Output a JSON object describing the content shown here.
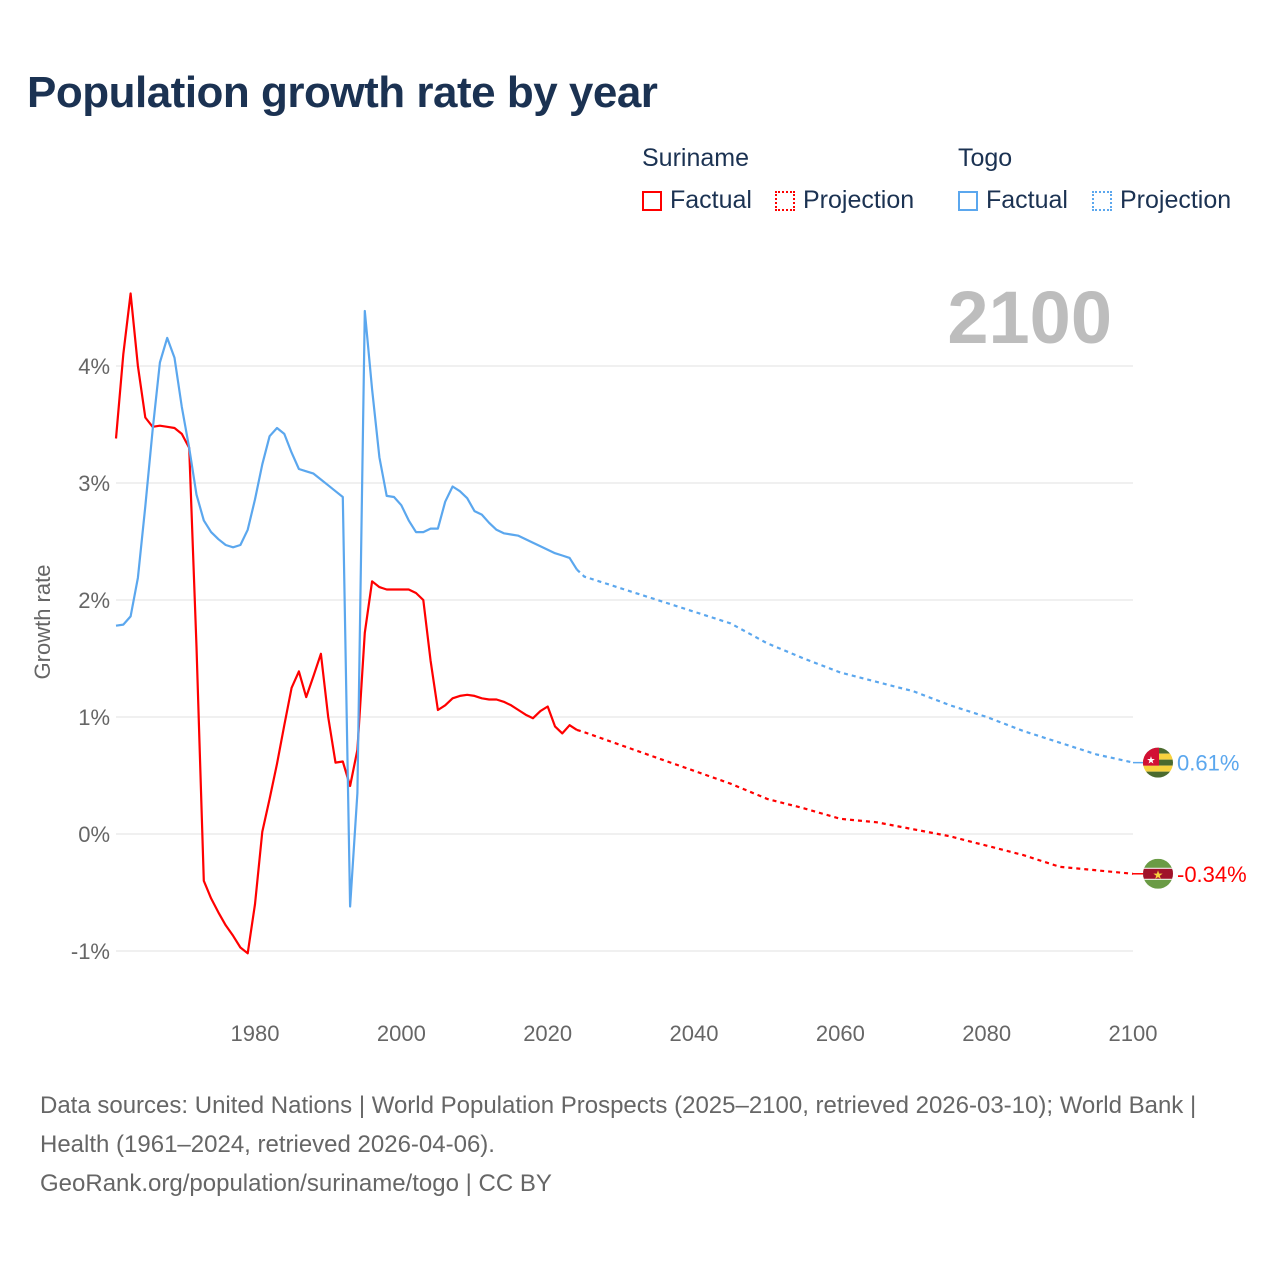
{
  "title": "Population growth rate by year",
  "legend": {
    "groups": [
      {
        "country": "Suriname",
        "color": "#ff0000",
        "factual": "Factual",
        "projection": "Projection"
      },
      {
        "country": "Togo",
        "color": "#5ba7ee",
        "factual": "Factual",
        "projection": "Projection"
      }
    ]
  },
  "footer": {
    "sources": "Data sources: United Nations | World Population Prospects (2025–2100, retrieved 2026-03-10); World Bank | Health (1961–2024, retrieved 2026-04-06).",
    "credit": "GeoRank.org/population/suriname/togo | CC BY"
  },
  "chart_data": {
    "type": "line",
    "title": "Population growth rate by year",
    "ylabel": "Growth rate",
    "xlabel": "",
    "year_label": "2100",
    "xlim": [
      1961,
      2100
    ],
    "ylim": [
      -1.5,
      4.8
    ],
    "x_ticks": [
      1980,
      2000,
      2020,
      2040,
      2060,
      2080,
      2100
    ],
    "x_tick_labels": [
      "1980",
      "2000",
      "2020",
      "2040",
      "2060",
      "2080",
      "2100"
    ],
    "y_ticks": [
      -1,
      0,
      1,
      2,
      3,
      4
    ],
    "y_tick_labels": [
      "-1%",
      "0%",
      "1%",
      "2%",
      "3%",
      "4%"
    ],
    "grid": true,
    "series": [
      {
        "name": "Suriname",
        "color": "#ff0000",
        "end_label": "-0.34%",
        "factual": {
          "x": [
            1961,
            1962,
            1963,
            1964,
            1965,
            1966,
            1967,
            1968,
            1969,
            1970,
            1971,
            1972,
            1973,
            1974,
            1975,
            1976,
            1977,
            1978,
            1979,
            1980,
            1981,
            1982,
            1983,
            1984,
            1985,
            1986,
            1987,
            1988,
            1989,
            1990,
            1991,
            1992,
            1993,
            1994,
            1995,
            1996,
            1997,
            1998,
            1999,
            2000,
            2001,
            2002,
            2003,
            2004,
            2005,
            2006,
            2007,
            2008,
            2009,
            2010,
            2011,
            2012,
            2013,
            2014,
            2015,
            2016,
            2017,
            2018,
            2019,
            2020,
            2021,
            2022,
            2023,
            2024
          ],
          "y": [
            3.38,
            4.1,
            4.62,
            4.0,
            3.56,
            3.48,
            3.49,
            3.48,
            3.47,
            3.42,
            3.3,
            1.6,
            -0.4,
            -0.55,
            -0.67,
            -0.78,
            -0.87,
            -0.97,
            -1.02,
            -0.6,
            0.02,
            0.3,
            0.6,
            0.93,
            1.25,
            1.39,
            1.17,
            1.35,
            1.54,
            1.0,
            0.61,
            0.62,
            0.41,
            0.72,
            1.72,
            2.16,
            2.11,
            2.09,
            2.09,
            2.09,
            2.09,
            2.06,
            2.0,
            1.48,
            1.06,
            1.1,
            1.16,
            1.18,
            1.19,
            1.18,
            1.16,
            1.15,
            1.15,
            1.13,
            1.1,
            1.06,
            1.02,
            0.99,
            1.05,
            1.09,
            0.92,
            0.86,
            0.93,
            0.89
          ]
        },
        "projection": {
          "x": [
            2024,
            2025,
            2030,
            2035,
            2040,
            2045,
            2050,
            2055,
            2060,
            2065,
            2070,
            2075,
            2080,
            2085,
            2090,
            2095,
            2100
          ],
          "y": [
            0.89,
            0.87,
            0.76,
            0.65,
            0.54,
            0.43,
            0.3,
            0.22,
            0.13,
            0.1,
            0.04,
            -0.02,
            -0.1,
            -0.18,
            -0.28,
            -0.31,
            -0.34
          ]
        }
      },
      {
        "name": "Togo",
        "color": "#5ba7ee",
        "end_label": "0.61%",
        "factual": {
          "x": [
            1961,
            1962,
            1963,
            1964,
            1965,
            1966,
            1967,
            1968,
            1969,
            1970,
            1971,
            1972,
            1973,
            1974,
            1975,
            1976,
            1977,
            1978,
            1979,
            1980,
            1981,
            1982,
            1983,
            1984,
            1985,
            1986,
            1987,
            1988,
            1989,
            1990,
            1991,
            1992,
            1993,
            1994,
            1995,
            1996,
            1997,
            1998,
            1999,
            2000,
            2001,
            2002,
            2003,
            2004,
            2005,
            2006,
            2007,
            2008,
            2009,
            2010,
            2011,
            2012,
            2013,
            2014,
            2015,
            2016,
            2017,
            2018,
            2019,
            2020,
            2021,
            2022,
            2023,
            2024
          ],
          "y": [
            1.78,
            1.79,
            1.86,
            2.19,
            2.8,
            3.45,
            4.03,
            4.24,
            4.07,
            3.65,
            3.3,
            2.9,
            2.68,
            2.58,
            2.52,
            2.47,
            2.45,
            2.47,
            2.6,
            2.86,
            3.16,
            3.4,
            3.47,
            3.42,
            3.26,
            3.12,
            3.1,
            3.08,
            3.03,
            2.98,
            2.93,
            2.88,
            -0.62,
            0.35,
            4.47,
            3.8,
            3.22,
            2.89,
            2.88,
            2.81,
            2.68,
            2.58,
            2.58,
            2.61,
            2.61,
            2.84,
            2.97,
            2.93,
            2.87,
            2.76,
            2.73,
            2.66,
            2.6,
            2.57,
            2.56,
            2.55,
            2.52,
            2.49,
            2.46,
            2.43,
            2.4,
            2.38,
            2.36,
            2.26
          ]
        },
        "projection": {
          "x": [
            2024,
            2025,
            2030,
            2035,
            2040,
            2045,
            2050,
            2055,
            2060,
            2065,
            2070,
            2075,
            2080,
            2085,
            2090,
            2095,
            2100
          ],
          "y": [
            2.26,
            2.2,
            2.1,
            2.0,
            1.9,
            1.8,
            1.63,
            1.5,
            1.38,
            1.3,
            1.22,
            1.1,
            1.0,
            0.88,
            0.78,
            0.68,
            0.61
          ]
        }
      }
    ]
  }
}
